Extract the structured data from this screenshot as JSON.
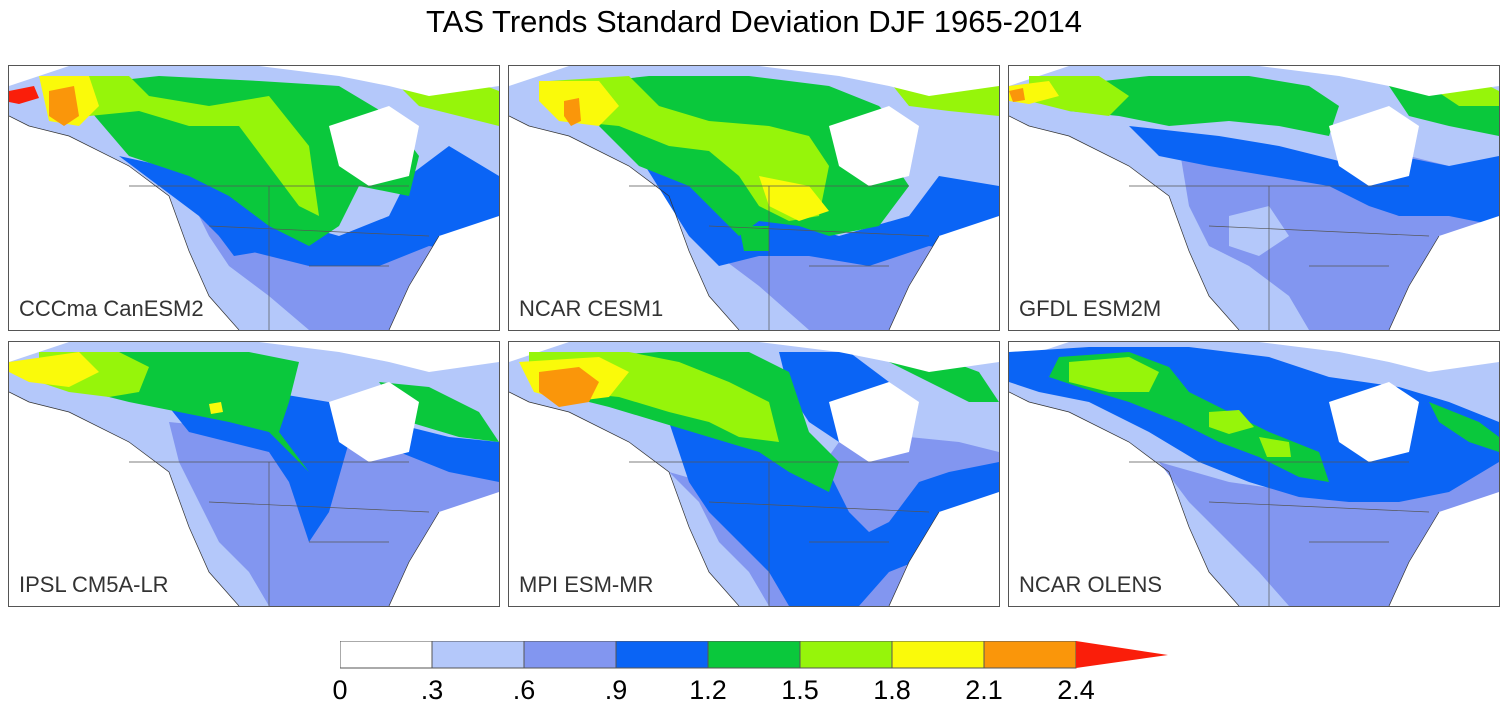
{
  "title": "TAS Trends Standard Deviation DJF 1965-2014",
  "colors": {
    "c0": "#ffffff",
    "c1": "#b4c8fa",
    "c2": "#8296f0",
    "c3": "#0a64f5",
    "c4": "#0ac83c",
    "c5": "#96f50a",
    "c6": "#fafa0a",
    "c7": "#fa960a",
    "c8": "#fa1e0a",
    "ice": "#ffffff",
    "border": "#555555"
  },
  "panels": [
    {
      "label": "CCCma CanESM2",
      "scheme": "canesm2"
    },
    {
      "label": "NCAR CESM1",
      "scheme": "cesm1"
    },
    {
      "label": "GFDL ESM2M",
      "scheme": "esm2m"
    },
    {
      "label": "IPSL CM5A-LR",
      "scheme": "ipsl"
    },
    {
      "label": "MPI ESM-MR",
      "scheme": "mpi"
    },
    {
      "label": "NCAR OLENS",
      "scheme": "olens"
    }
  ],
  "colorbar": {
    "ticks": [
      "0",
      ".3",
      ".6",
      ".9",
      "1.2",
      "1.5",
      "1.8",
      "2.1",
      "2.4"
    ]
  }
}
